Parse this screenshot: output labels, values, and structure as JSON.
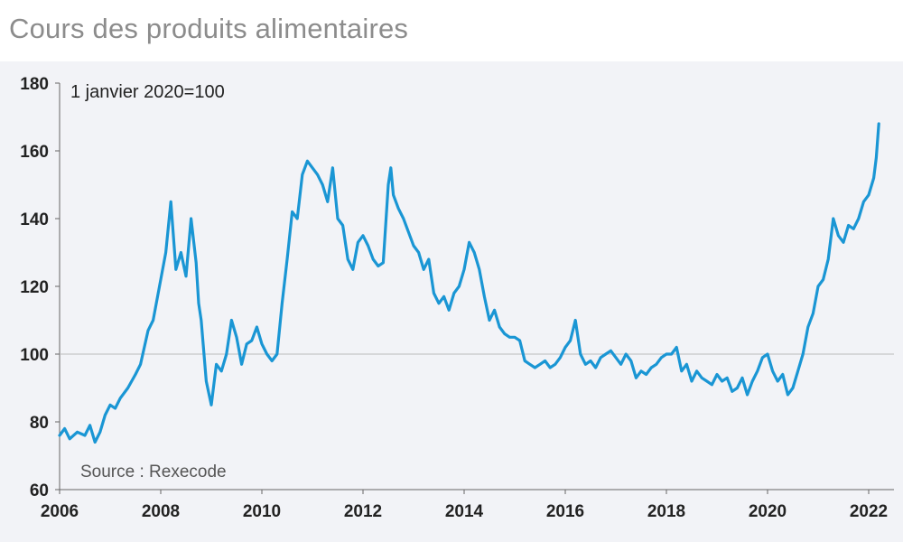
{
  "chart_data": {
    "type": "line",
    "title": "Cours des produits alimentaires",
    "annotation": "1 janvier 2020=100",
    "source": "Source : Rexecode",
    "xlabel": "",
    "ylabel": "",
    "xlim": [
      2006,
      2022.5
    ],
    "ylim": [
      60,
      180
    ],
    "x_ticks": [
      2006,
      2008,
      2010,
      2012,
      2014,
      2016,
      2018,
      2020,
      2022
    ],
    "y_ticks": [
      60,
      80,
      100,
      120,
      140,
      160,
      180
    ],
    "reference_line": 100,
    "colors": {
      "line": "#1a96d4",
      "plot_bg": "#f2f3f7",
      "ref_line": "#bbbbbb"
    },
    "series": [
      {
        "name": "Cours des produits alimentaires",
        "x": [
          2006.0,
          2006.1,
          2006.2,
          2006.35,
          2006.5,
          2006.6,
          2006.7,
          2006.8,
          2006.9,
          2007.0,
          2007.1,
          2007.2,
          2007.35,
          2007.5,
          2007.6,
          2007.75,
          2007.85,
          2008.0,
          2008.1,
          2008.2,
          2008.3,
          2008.4,
          2008.5,
          2008.6,
          2008.7,
          2008.75,
          2008.8,
          2008.9,
          2009.0,
          2009.1,
          2009.2,
          2009.3,
          2009.4,
          2009.5,
          2009.6,
          2009.7,
          2009.8,
          2009.9,
          2010.0,
          2010.1,
          2010.2,
          2010.3,
          2010.4,
          2010.5,
          2010.6,
          2010.7,
          2010.8,
          2010.9,
          2011.0,
          2011.1,
          2011.2,
          2011.3,
          2011.4,
          2011.5,
          2011.6,
          2011.7,
          2011.8,
          2011.9,
          2012.0,
          2012.1,
          2012.2,
          2012.3,
          2012.4,
          2012.5,
          2012.55,
          2012.6,
          2012.7,
          2012.8,
          2012.9,
          2013.0,
          2013.1,
          2013.2,
          2013.3,
          2013.4,
          2013.5,
          2013.6,
          2013.7,
          2013.8,
          2013.9,
          2014.0,
          2014.1,
          2014.2,
          2014.3,
          2014.4,
          2014.5,
          2014.6,
          2014.7,
          2014.8,
          2014.9,
          2015.0,
          2015.1,
          2015.2,
          2015.3,
          2015.4,
          2015.5,
          2015.6,
          2015.7,
          2015.8,
          2015.9,
          2016.0,
          2016.1,
          2016.2,
          2016.3,
          2016.4,
          2016.5,
          2016.6,
          2016.7,
          2016.8,
          2016.9,
          2017.0,
          2017.1,
          2017.2,
          2017.3,
          2017.4,
          2017.5,
          2017.6,
          2017.7,
          2017.8,
          2017.9,
          2018.0,
          2018.1,
          2018.2,
          2018.3,
          2018.4,
          2018.5,
          2018.6,
          2018.7,
          2018.8,
          2018.9,
          2019.0,
          2019.1,
          2019.2,
          2019.3,
          2019.4,
          2019.5,
          2019.6,
          2019.7,
          2019.8,
          2019.9,
          2020.0,
          2020.1,
          2020.2,
          2020.3,
          2020.4,
          2020.5,
          2020.6,
          2020.7,
          2020.8,
          2020.9,
          2021.0,
          2021.1,
          2021.2,
          2021.3,
          2021.4,
          2021.5,
          2021.6,
          2021.7,
          2021.8,
          2021.9,
          2022.0,
          2022.1,
          2022.15,
          2022.2
        ],
        "values": [
          76,
          78,
          75,
          77,
          76,
          79,
          74,
          77,
          82,
          85,
          84,
          87,
          90,
          94,
          97,
          107,
          110,
          122,
          130,
          145,
          125,
          130,
          123,
          140,
          127,
          115,
          110,
          92,
          85,
          97,
          95,
          100,
          110,
          105,
          97,
          103,
          104,
          108,
          103,
          100,
          98,
          100,
          115,
          128,
          142,
          140,
          153,
          157,
          155,
          153,
          150,
          145,
          155,
          140,
          138,
          128,
          125,
          133,
          135,
          132,
          128,
          126,
          127,
          150,
          155,
          147,
          143,
          140,
          136,
          132,
          130,
          125,
          128,
          118,
          115,
          117,
          113,
          118,
          120,
          125,
          133,
          130,
          125,
          117,
          110,
          113,
          108,
          106,
          105,
          105,
          104,
          98,
          97,
          96,
          97,
          98,
          96,
          97,
          99,
          102,
          104,
          110,
          100,
          97,
          98,
          96,
          99,
          100,
          101,
          99,
          97,
          100,
          98,
          93,
          95,
          94,
          96,
          97,
          99,
          100,
          100,
          102,
          95,
          97,
          92,
          95,
          93,
          92,
          91,
          94,
          92,
          93,
          89,
          90,
          93,
          88,
          92,
          95,
          99,
          100,
          95,
          92,
          94,
          88,
          90,
          95,
          100,
          108,
          112,
          120,
          122,
          128,
          140,
          135,
          133,
          138,
          137,
          140,
          145,
          147,
          152,
          158,
          168
        ]
      }
    ]
  }
}
